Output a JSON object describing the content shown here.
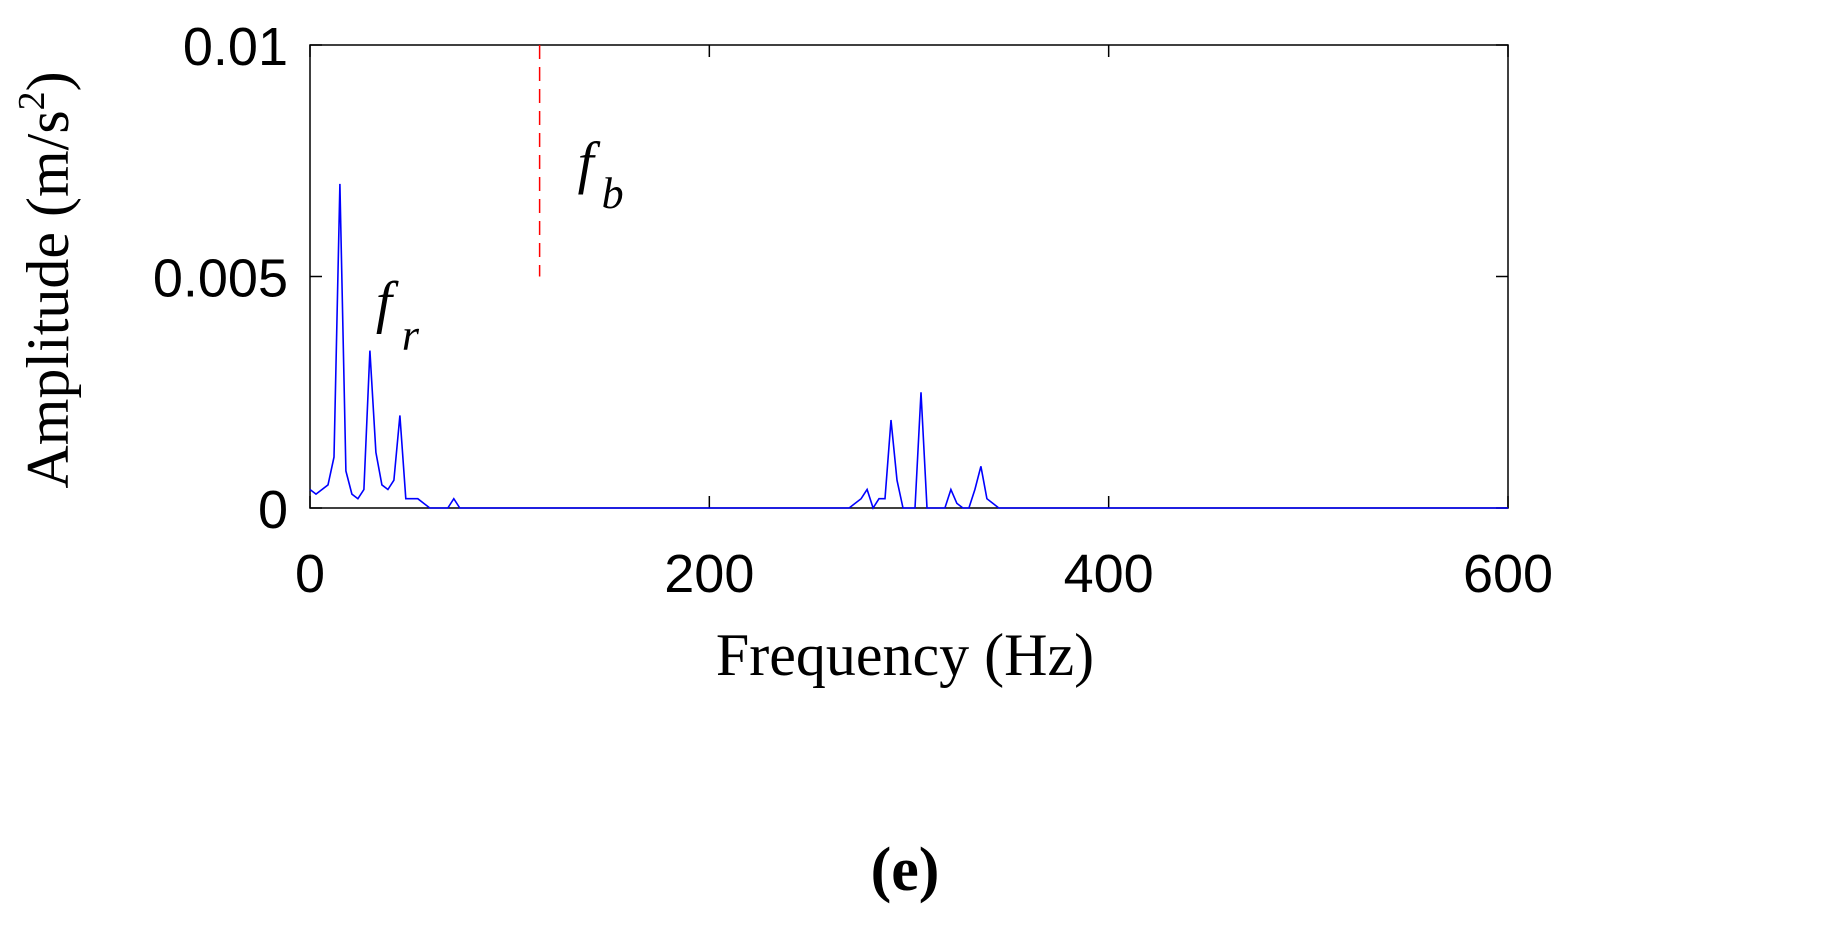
{
  "chart_data": {
    "type": "line",
    "xlabel": "Frequency (Hz)",
    "ylabel_text": "Amplitude (m/s",
    "ylabel_sup": "2",
    "ylabel_close": ")",
    "xlim": [
      0,
      600
    ],
    "ylim": [
      0,
      0.01
    ],
    "xticks": [
      0,
      200,
      400,
      600
    ],
    "xtick_labels": [
      "0",
      "200",
      "400",
      "600"
    ],
    "yticks": [
      0,
      0.005,
      0.01
    ],
    "ytick_labels": [
      "0",
      "0.005",
      "0.01"
    ],
    "grid": false,
    "panel_label": "(e)",
    "series": [
      {
        "color": "#0000ff",
        "x": [
          0,
          3,
          9,
          12,
          15,
          18,
          21,
          24,
          27,
          30,
          33,
          36,
          39,
          42,
          45,
          48,
          51,
          54,
          57,
          60,
          63,
          66,
          69,
          72,
          75,
          80,
          100,
          150,
          200,
          250,
          270,
          276,
          279,
          282,
          285,
          288,
          291,
          294,
          297,
          300,
          303,
          306,
          309,
          312,
          315,
          318,
          321,
          324,
          327,
          330,
          333,
          336,
          339,
          342,
          345,
          350,
          400,
          500,
          600
        ],
        "y": [
          0.0004,
          0.0003,
          0.0005,
          0.0011,
          0.007,
          0.0008,
          0.0003,
          0.0002,
          0.0004,
          0.0034,
          0.0012,
          0.0005,
          0.0004,
          0.0006,
          0.002,
          0.0002,
          0.0002,
          0.0002,
          0.0001,
          0.0,
          0.0,
          0.0,
          0.0,
          0.0002,
          0.0,
          0.0,
          0.0,
          0.0,
          0.0,
          0.0,
          0.0,
          0.0002,
          0.0004,
          0.0,
          0.0002,
          0.0002,
          0.0019,
          0.0006,
          0.0,
          0.0,
          0.0,
          0.0025,
          0.0,
          0.0,
          0.0,
          0.0,
          0.0004,
          0.0001,
          0.0,
          0.0,
          0.0004,
          0.0009,
          0.0002,
          0.0001,
          0.0,
          0.0,
          0.0,
          0.0,
          0.0
        ]
      }
    ],
    "reference_lines": [
      {
        "label_main": "f",
        "label_sub": "b",
        "x": 115,
        "y_from": 0.005,
        "y_to": 0.01,
        "color": "#ff0000",
        "style": "dashed"
      }
    ],
    "annotations": [
      {
        "label_main": "f",
        "label_sub": "r",
        "x": 28,
        "y": 0.0042
      }
    ]
  }
}
